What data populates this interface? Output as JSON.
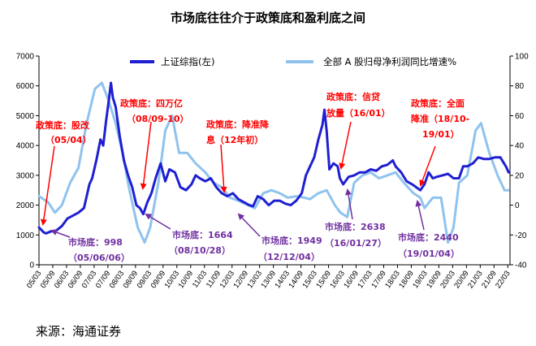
{
  "chart_data": {
    "type": "line",
    "title": "市场底往往介于政策底和盈利底之间",
    "source": "来源：海通证券",
    "x_tick_labels": [
      "05/03",
      "05/09",
      "06/03",
      "06/09",
      "07/03",
      "07/09",
      "08/03",
      "08/09",
      "09/03",
      "09/09",
      "10/03",
      "10/09",
      "11/03",
      "11/09",
      "12/03",
      "12/09",
      "13/03",
      "13/09",
      "14/03",
      "14/09",
      "15/03",
      "15/09",
      "16/03",
      "16/09",
      "17/03",
      "17/09",
      "18/03",
      "18/09",
      "19/03",
      "19/09",
      "20/03",
      "20/09",
      "21/03",
      "21/09",
      "22/03"
    ],
    "y_left": {
      "min": 0,
      "max": 7000,
      "step": 1000,
      "ticks": [
        "0",
        "1000",
        "2000",
        "3000",
        "4000",
        "5000",
        "6000",
        "7000"
      ]
    },
    "y_right": {
      "min": -40,
      "max": 100,
      "step": 20,
      "ticks": [
        "-40",
        "-20",
        "0",
        "20",
        "40",
        "60",
        "80",
        "100"
      ]
    },
    "series": [
      {
        "name": "上证综指(左)",
        "axis": "left",
        "color": "#1f1fd2",
        "x": [
          2005.17,
          2005.35,
          2005.43,
          2005.6,
          2005.8,
          2006.0,
          2006.2,
          2006.4,
          2006.6,
          2006.8,
          2007.0,
          2007.1,
          2007.25,
          2007.4,
          2007.5,
          2007.6,
          2007.7,
          2007.78,
          2007.85,
          2007.95,
          2008.1,
          2008.25,
          2008.4,
          2008.55,
          2008.7,
          2008.83,
          2008.95,
          2009.1,
          2009.25,
          2009.4,
          2009.58,
          2009.75,
          2009.9,
          2010.1,
          2010.3,
          2010.5,
          2010.7,
          2010.85,
          2011.0,
          2011.2,
          2011.4,
          2011.6,
          2011.8,
          2012.0,
          2012.2,
          2012.4,
          2012.6,
          2012.8,
          2012.93,
          2013.1,
          2013.3,
          2013.5,
          2013.7,
          2013.9,
          2014.1,
          2014.3,
          2014.5,
          2014.7,
          2014.85,
          2015.0,
          2015.15,
          2015.3,
          2015.45,
          2015.52,
          2015.6,
          2015.7,
          2015.85,
          2016.0,
          2016.08,
          2016.2,
          2016.4,
          2016.6,
          2016.8,
          2017.0,
          2017.2,
          2017.4,
          2017.6,
          2017.8,
          2018.0,
          2018.1,
          2018.3,
          2018.5,
          2018.7,
          2018.85,
          2019.0,
          2019.15,
          2019.3,
          2019.45,
          2019.6,
          2019.8,
          2020.0,
          2020.2,
          2020.4,
          2020.55,
          2020.7,
          2020.9,
          2021.1,
          2021.3,
          2021.5,
          2021.7,
          2021.9,
          2022.1,
          2022.2
        ],
        "y": [
          1250,
          1080,
          1050,
          1120,
          1150,
          1300,
          1550,
          1650,
          1750,
          1900,
          2700,
          2900,
          3500,
          4200,
          4000,
          4800,
          5500,
          6100,
          5600,
          5300,
          4300,
          3500,
          3000,
          2600,
          2000,
          1900,
          1700,
          2100,
          2400,
          2900,
          3400,
          2800,
          3200,
          3100,
          2600,
          2500,
          2700,
          3000,
          2900,
          2800,
          2900,
          2600,
          2400,
          2300,
          2400,
          2200,
          2100,
          2000,
          1960,
          2300,
          2200,
          2000,
          2150,
          2150,
          2050,
          2000,
          2150,
          2400,
          3000,
          3300,
          3600,
          4200,
          4700,
          5200,
          4500,
          3200,
          3400,
          3300,
          2900,
          2700,
          2950,
          3000,
          3100,
          3100,
          3200,
          3150,
          3300,
          3350,
          3500,
          3300,
          3100,
          2800,
          2700,
          2600,
          2500,
          2700,
          3100,
          2900,
          2950,
          3000,
          3050,
          2900,
          2900,
          3300,
          3300,
          3400,
          3600,
          3550,
          3550,
          3600,
          3600,
          3300,
          3100
        ]
      },
      {
        "name": "全部 A 股归母净利润同比增速%",
        "axis": "right",
        "color": "#8fc3ee",
        "x": [
          2005.17,
          2005.5,
          2005.75,
          2006.0,
          2006.3,
          2006.6,
          2006.9,
          2007.2,
          2007.45,
          2007.7,
          2007.95,
          2008.2,
          2008.45,
          2008.75,
          2009.0,
          2009.2,
          2009.5,
          2009.75,
          2010.0,
          2010.25,
          2010.55,
          2010.85,
          2011.2,
          2011.5,
          2011.8,
          2012.1,
          2012.4,
          2012.75,
          2013.0,
          2013.3,
          2013.6,
          2013.9,
          2014.2,
          2014.5,
          2014.8,
          2015.0,
          2015.3,
          2015.6,
          2015.9,
          2016.1,
          2016.35,
          2016.6,
          2016.9,
          2017.2,
          2017.5,
          2017.8,
          2018.1,
          2018.4,
          2018.75,
          2019.0,
          2019.15,
          2019.45,
          2019.75,
          2020.0,
          2020.2,
          2020.4,
          2020.7,
          2021.0,
          2021.2,
          2021.5,
          2021.8,
          2022.05,
          2022.2
        ],
        "y": [
          6,
          2,
          -5,
          0,
          15,
          25,
          55,
          78,
          82,
          70,
          55,
          35,
          10,
          -15,
          -25,
          -15,
          15,
          50,
          60,
          35,
          35,
          28,
          22,
          15,
          12,
          5,
          3,
          0,
          -2,
          8,
          10,
          8,
          5,
          6,
          5,
          4,
          8,
          10,
          0,
          -5,
          -8,
          15,
          20,
          22,
          18,
          20,
          22,
          15,
          8,
          5,
          -2,
          5,
          5,
          -25,
          -15,
          15,
          20,
          50,
          55,
          35,
          20,
          10,
          10
        ]
      }
    ],
    "annotations": {
      "policy_bottoms": [
        {
          "line1": "政策底：股改",
          "line2": "（05/04）"
        },
        {
          "line1": "政策底：四万亿",
          "line2": "（08/09-10）"
        },
        {
          "line1": "政策底：降准降",
          "line2": "息（12年初）"
        },
        {
          "line1": "政策底：信贷",
          "line2": "放量（16/01）"
        },
        {
          "line1": "政策底：全面",
          "line2": "降准（18/10-",
          "line3": "19/01）"
        }
      ],
      "market_bottoms": [
        {
          "line1": "市场底：998",
          "line2": "（05/06/06）"
        },
        {
          "line1": "市场底：1664",
          "line2": "（08/10/28）"
        },
        {
          "line1": "市场底：1949",
          "line2": "（12/12/04）"
        },
        {
          "line1": "市场底：2638",
          "line2": "（16/01/27）"
        },
        {
          "line1": "市场底：2440",
          "line2": "（19/01/04）"
        }
      ]
    }
  }
}
